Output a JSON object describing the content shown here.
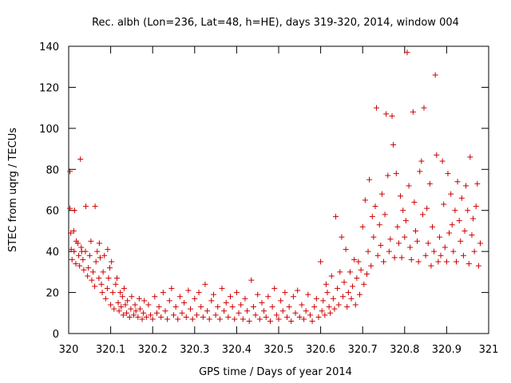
{
  "chart_data": {
    "type": "scatter",
    "title": "Rec. albh (Lon=236, Lat=48, h=HE), days 319-320, 2014, window 004",
    "xlabel": "GPS time / Days of year 2014",
    "ylabel": "STEC from uqrg / TECUs",
    "xlim": [
      320,
      321
    ],
    "ylim": [
      0,
      140
    ],
    "xticks": [
      "320",
      "320.1",
      "320.2",
      "320.3",
      "320.4",
      "320.5",
      "320.6",
      "320.7",
      "320.8",
      "320.9",
      "321"
    ],
    "yticks": [
      "0",
      "20",
      "40",
      "60",
      "80",
      "100",
      "120",
      "140"
    ],
    "grid": false,
    "legend": "none",
    "marker": "plus",
    "color": "#cc0000",
    "points": [
      [
        320.003,
        61
      ],
      [
        320.003,
        79
      ],
      [
        320.005,
        49
      ],
      [
        320.006,
        41
      ],
      [
        320.008,
        36
      ],
      [
        320.012,
        50
      ],
      [
        320.013,
        40
      ],
      [
        320.014,
        60
      ],
      [
        320.017,
        34
      ],
      [
        320.018,
        45
      ],
      [
        320.022,
        44
      ],
      [
        320.024,
        38
      ],
      [
        320.026,
        33
      ],
      [
        320.028,
        85
      ],
      [
        320.03,
        42
      ],
      [
        320.031,
        40
      ],
      [
        320.034,
        36
      ],
      [
        320.036,
        31
      ],
      [
        320.04,
        40
      ],
      [
        320.041,
        62
      ],
      [
        320.045,
        28
      ],
      [
        320.047,
        32
      ],
      [
        320.05,
        38
      ],
      [
        320.053,
        45
      ],
      [
        320.055,
        26
      ],
      [
        320.058,
        30
      ],
      [
        320.062,
        23
      ],
      [
        320.063,
        62
      ],
      [
        320.065,
        35
      ],
      [
        320.068,
        40
      ],
      [
        320.072,
        27
      ],
      [
        320.073,
        44
      ],
      [
        320.075,
        37
      ],
      [
        320.078,
        24
      ],
      [
        320.08,
        20
      ],
      [
        320.082,
        30
      ],
      [
        320.085,
        38
      ],
      [
        320.088,
        17
      ],
      [
        320.092,
        22
      ],
      [
        320.093,
        41
      ],
      [
        320.095,
        27
      ],
      [
        320.098,
        32
      ],
      [
        320.1,
        14
      ],
      [
        320.102,
        35
      ],
      [
        320.105,
        20
      ],
      [
        320.108,
        12
      ],
      [
        320.112,
        24
      ],
      [
        320.115,
        27
      ],
      [
        320.118,
        15
      ],
      [
        320.12,
        11
      ],
      [
        320.123,
        20
      ],
      [
        320.125,
        13
      ],
      [
        320.128,
        18
      ],
      [
        320.13,
        9
      ],
      [
        320.132,
        22
      ],
      [
        320.135,
        14
      ],
      [
        320.138,
        10
      ],
      [
        320.14,
        16
      ],
      [
        320.145,
        8
      ],
      [
        320.148,
        12
      ],
      [
        320.15,
        18
      ],
      [
        320.155,
        9
      ],
      [
        320.158,
        14
      ],
      [
        320.16,
        11
      ],
      [
        320.165,
        8
      ],
      [
        320.168,
        17
      ],
      [
        320.17,
        12
      ],
      [
        320.175,
        7
      ],
      [
        320.178,
        10
      ],
      [
        320.18,
        16
      ],
      [
        320.185,
        8
      ],
      [
        320.19,
        14
      ],
      [
        320.195,
        9
      ],
      [
        320.2,
        7
      ],
      [
        320.205,
        18
      ],
      [
        320.21,
        10
      ],
      [
        320.215,
        13
      ],
      [
        320.22,
        8
      ],
      [
        320.225,
        20
      ],
      [
        320.23,
        11
      ],
      [
        320.235,
        7
      ],
      [
        320.24,
        16
      ],
      [
        320.245,
        22
      ],
      [
        320.25,
        9
      ],
      [
        320.255,
        13
      ],
      [
        320.26,
        7
      ],
      [
        320.265,
        18
      ],
      [
        320.27,
        10
      ],
      [
        320.275,
        15
      ],
      [
        320.28,
        8
      ],
      [
        320.285,
        21
      ],
      [
        320.29,
        12
      ],
      [
        320.295,
        7
      ],
      [
        320.3,
        17
      ],
      [
        320.305,
        9
      ],
      [
        320.31,
        20
      ],
      [
        320.315,
        13
      ],
      [
        320.32,
        8
      ],
      [
        320.325,
        24
      ],
      [
        320.33,
        11
      ],
      [
        320.335,
        7
      ],
      [
        320.34,
        16
      ],
      [
        320.345,
        19
      ],
      [
        320.35,
        9
      ],
      [
        320.355,
        13
      ],
      [
        320.36,
        7
      ],
      [
        320.365,
        22
      ],
      [
        320.37,
        11
      ],
      [
        320.375,
        15
      ],
      [
        320.38,
        8
      ],
      [
        320.385,
        18
      ],
      [
        320.39,
        13
      ],
      [
        320.395,
        7
      ],
      [
        320.4,
        20
      ],
      [
        320.405,
        10
      ],
      [
        320.41,
        14
      ],
      [
        320.415,
        7
      ],
      [
        320.42,
        17
      ],
      [
        320.425,
        11
      ],
      [
        320.43,
        6
      ],
      [
        320.435,
        26
      ],
      [
        320.44,
        13
      ],
      [
        320.445,
        9
      ],
      [
        320.45,
        19
      ],
      [
        320.455,
        7
      ],
      [
        320.46,
        15
      ],
      [
        320.465,
        11
      ],
      [
        320.47,
        8
      ],
      [
        320.475,
        18
      ],
      [
        320.48,
        6
      ],
      [
        320.485,
        13
      ],
      [
        320.49,
        22
      ],
      [
        320.495,
        9
      ],
      [
        320.5,
        7
      ],
      [
        320.505,
        16
      ],
      [
        320.51,
        11
      ],
      [
        320.515,
        20
      ],
      [
        320.52,
        8
      ],
      [
        320.525,
        13
      ],
      [
        320.53,
        6
      ],
      [
        320.535,
        18
      ],
      [
        320.54,
        10
      ],
      [
        320.545,
        21
      ],
      [
        320.55,
        8
      ],
      [
        320.555,
        14
      ],
      [
        320.56,
        7
      ],
      [
        320.565,
        11
      ],
      [
        320.57,
        19
      ],
      [
        320.575,
        9
      ],
      [
        320.58,
        6
      ],
      [
        320.585,
        13
      ],
      [
        320.59,
        17
      ],
      [
        320.595,
        8
      ],
      [
        320.6,
        35
      ],
      [
        320.603,
        11
      ],
      [
        320.606,
        16
      ],
      [
        320.61,
        9
      ],
      [
        320.613,
        24
      ],
      [
        320.616,
        20
      ],
      [
        320.62,
        13
      ],
      [
        320.623,
        10
      ],
      [
        320.626,
        28
      ],
      [
        320.63,
        17
      ],
      [
        320.633,
        12
      ],
      [
        320.636,
        57
      ],
      [
        320.64,
        22
      ],
      [
        320.643,
        14
      ],
      [
        320.646,
        30
      ],
      [
        320.65,
        47
      ],
      [
        320.653,
        18
      ],
      [
        320.656,
        25
      ],
      [
        320.66,
        41
      ],
      [
        320.663,
        13
      ],
      [
        320.666,
        20
      ],
      [
        320.67,
        30
      ],
      [
        320.673,
        17
      ],
      [
        320.676,
        23
      ],
      [
        320.68,
        36
      ],
      [
        320.683,
        14
      ],
      [
        320.686,
        27
      ],
      [
        320.69,
        35
      ],
      [
        320.693,
        19
      ],
      [
        320.696,
        31
      ],
      [
        320.7,
        52
      ],
      [
        320.703,
        24
      ],
      [
        320.706,
        65
      ],
      [
        320.71,
        29
      ],
      [
        320.713,
        40
      ],
      [
        320.716,
        75
      ],
      [
        320.72,
        33
      ],
      [
        320.723,
        57
      ],
      [
        320.726,
        47
      ],
      [
        320.73,
        62
      ],
      [
        320.733,
        110
      ],
      [
        320.736,
        38
      ],
      [
        320.74,
        53
      ],
      [
        320.743,
        43
      ],
      [
        320.746,
        68
      ],
      [
        320.75,
        35
      ],
      [
        320.753,
        58
      ],
      [
        320.756,
        107
      ],
      [
        320.76,
        77
      ],
      [
        320.763,
        40
      ],
      [
        320.766,
        46
      ],
      [
        320.77,
        106
      ],
      [
        320.773,
        92
      ],
      [
        320.776,
        37
      ],
      [
        320.78,
        78
      ],
      [
        320.783,
        52
      ],
      [
        320.786,
        44
      ],
      [
        320.79,
        67
      ],
      [
        320.793,
        37
      ],
      [
        320.796,
        60
      ],
      [
        320.8,
        47
      ],
      [
        320.803,
        55
      ],
      [
        320.806,
        137
      ],
      [
        320.81,
        72
      ],
      [
        320.813,
        42
      ],
      [
        320.816,
        36
      ],
      [
        320.82,
        108
      ],
      [
        320.823,
        64
      ],
      [
        320.826,
        50
      ],
      [
        320.83,
        45
      ],
      [
        320.833,
        35
      ],
      [
        320.836,
        79
      ],
      [
        320.84,
        84
      ],
      [
        320.843,
        58
      ],
      [
        320.846,
        110
      ],
      [
        320.85,
        38
      ],
      [
        320.853,
        61
      ],
      [
        320.856,
        44
      ],
      [
        320.86,
        73
      ],
      [
        320.863,
        33
      ],
      [
        320.866,
        52
      ],
      [
        320.87,
        40
      ],
      [
        320.873,
        126
      ],
      [
        320.876,
        87
      ],
      [
        320.88,
        35
      ],
      [
        320.883,
        47
      ],
      [
        320.886,
        38
      ],
      [
        320.89,
        84
      ],
      [
        320.893,
        63
      ],
      [
        320.896,
        42
      ],
      [
        320.9,
        35
      ],
      [
        320.903,
        78
      ],
      [
        320.906,
        49
      ],
      [
        320.91,
        68
      ],
      [
        320.913,
        53
      ],
      [
        320.916,
        40
      ],
      [
        320.92,
        60
      ],
      [
        320.923,
        35
      ],
      [
        320.926,
        74
      ],
      [
        320.93,
        55
      ],
      [
        320.933,
        45
      ],
      [
        320.936,
        66
      ],
      [
        320.94,
        38
      ],
      [
        320.943,
        50
      ],
      [
        320.946,
        72
      ],
      [
        320.95,
        60
      ],
      [
        320.953,
        34
      ],
      [
        320.956,
        86
      ],
      [
        320.96,
        48
      ],
      [
        320.963,
        56
      ],
      [
        320.966,
        40
      ],
      [
        320.97,
        62
      ],
      [
        320.973,
        73
      ],
      [
        320.976,
        33
      ],
      [
        320.98,
        44
      ]
    ]
  }
}
